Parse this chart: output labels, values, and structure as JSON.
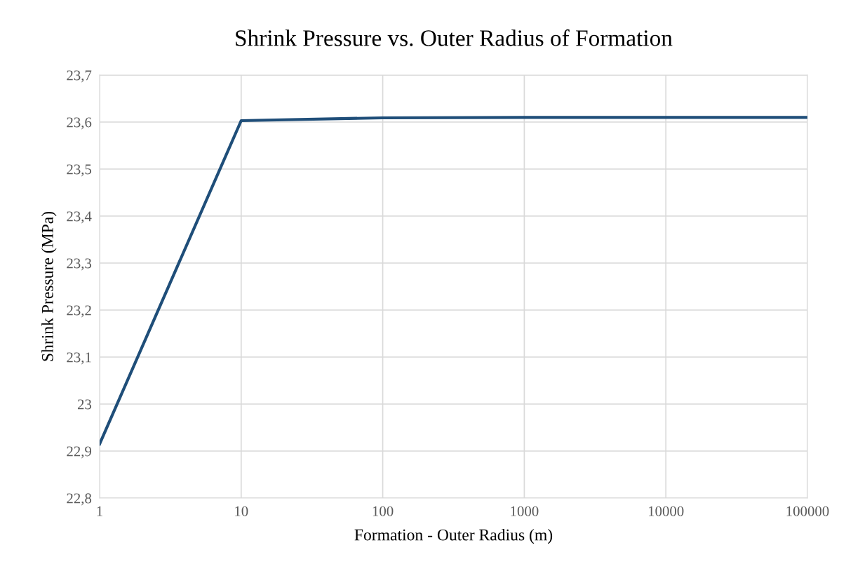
{
  "chart_data": {
    "type": "line",
    "title": "Shrink Pressure vs. Outer Radius of Formation",
    "xlabel": "Formation - Outer Radius (m)",
    "ylabel": "Shrink Pressure (MPa)",
    "x": [
      1,
      10,
      100,
      1000,
      10000,
      100000
    ],
    "series": [
      {
        "color": "#1f4e79",
        "values": [
          22.915,
          23.603,
          23.609,
          23.61,
          23.61,
          23.61
        ]
      }
    ],
    "log": "x",
    "xlim": [
      1,
      100000
    ],
    "xticks": [
      1,
      10,
      100,
      1000,
      10000,
      100000
    ],
    "ylim": [
      22.8,
      23.7
    ],
    "yticks": [
      {
        "value": 22.8,
        "label": "22,8"
      },
      {
        "value": 22.9,
        "label": "22,9"
      },
      23,
      {
        "value": 23.1,
        "label": "23,1"
      },
      {
        "value": 23.2,
        "label": "23,2"
      },
      {
        "value": 23.3,
        "label": "23,3"
      },
      {
        "value": 23.4,
        "label": "23,4"
      },
      {
        "value": 23.5,
        "label": "23,5"
      },
      {
        "value": 23.6,
        "label": "23,6"
      },
      {
        "value": 23.7,
        "label": "23,7"
      }
    ],
    "grid": true,
    "legend": false,
    "marker": "none",
    "line_style": "solid"
  }
}
